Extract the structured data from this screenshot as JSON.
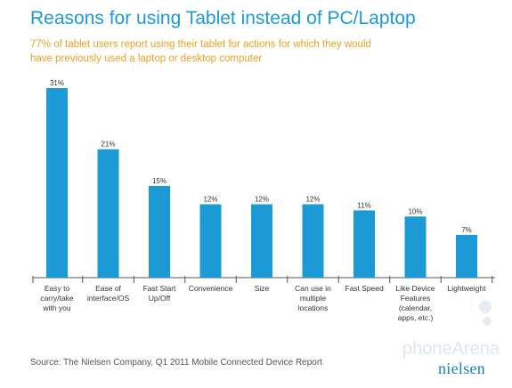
{
  "chart_data": {
    "type": "bar",
    "title": "Reasons for using Tablet instead of PC/Laptop",
    "subtitle": "77% of tablet users report using their tablet for actions for which they would have previously used a laptop or desktop computer",
    "categories": [
      [
        "Easy to",
        "carry/take",
        "with you"
      ],
      [
        "Ease of",
        "interface/OS"
      ],
      [
        "Fast Start",
        "Up/Off"
      ],
      [
        "Convenience"
      ],
      [
        "Size"
      ],
      [
        "Can use in",
        "multiple",
        "locations"
      ],
      [
        "Fast Speed"
      ],
      [
        "Like Device",
        "Features",
        "(calendar,",
        "apps, etc.)"
      ],
      [
        "Lightweight"
      ]
    ],
    "values": [
      31,
      21,
      15,
      12,
      12,
      12,
      11,
      10,
      7
    ],
    "value_labels": [
      "31%",
      "21%",
      "15%",
      "12%",
      "12%",
      "12%",
      "11%",
      "10%",
      "7%"
    ],
    "ylim": [
      0,
      31
    ],
    "bar_color": "#1b9ad6",
    "grid": false,
    "legend": "none"
  },
  "source": "Source: The Nielsen Company, Q1 2011 Mobile Connected Device Report",
  "logo": {
    "name": "nielsen",
    "tagline": ""
  },
  "watermark": "phoneArena",
  "colors": {
    "title": "#1b9ad6",
    "subtitle": "#f0a020",
    "bars": "#1b9ad6",
    "axis": "#555555"
  }
}
